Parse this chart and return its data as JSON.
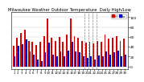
{
  "title": "Milwaukee Weather Outdoor Temperature  Daily High/Low",
  "title_fontsize": 3.8,
  "background_color": "#ffffff",
  "plot_bg_color": "#ffffff",
  "ylim": [
    -5,
    110
  ],
  "yticks": [
    0,
    20,
    40,
    60,
    80,
    100
  ],
  "ytick_fontsize": 3.2,
  "xtick_fontsize": 2.8,
  "bar_width": 0.4,
  "high_color": "#dd0000",
  "low_color": "#0000cc",
  "legend_high": "Hi",
  "legend_low": "Lo",
  "days": [
    1,
    2,
    3,
    4,
    5,
    6,
    7,
    8,
    9,
    10,
    11,
    12,
    13,
    14,
    15,
    16,
    17,
    18,
    19,
    20,
    21,
    22,
    23,
    24,
    25,
    26,
    27,
    28,
    29,
    30
  ],
  "highs": [
    42,
    58,
    68,
    75,
    52,
    50,
    44,
    50,
    62,
    98,
    58,
    52,
    60,
    50,
    65,
    98,
    62,
    58,
    52,
    48,
    50,
    46,
    52,
    50,
    64,
    56,
    58,
    62,
    52,
    56
  ],
  "lows": [
    20,
    42,
    45,
    55,
    30,
    24,
    14,
    10,
    28,
    48,
    24,
    20,
    30,
    20,
    32,
    50,
    30,
    28,
    20,
    18,
    20,
    14,
    22,
    20,
    30,
    24,
    28,
    32,
    20,
    24
  ],
  "dashed_line_x": [
    18.5,
    19.5,
    20.5,
    21.5
  ],
  "grid_color": "#cccccc",
  "spine_lw": 0.4
}
